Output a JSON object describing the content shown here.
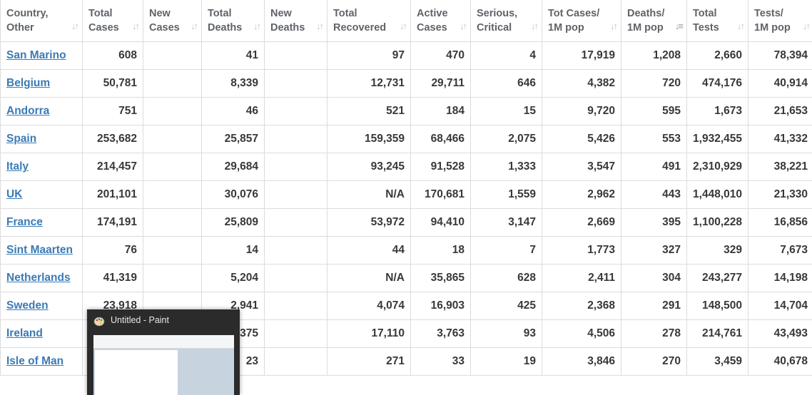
{
  "table": {
    "headers": [
      {
        "label": "Country,\nOther"
      },
      {
        "label": "Total\nCases"
      },
      {
        "label": "New\nCases"
      },
      {
        "label": "Total\nDeaths"
      },
      {
        "label": "New\nDeaths"
      },
      {
        "label": "Total\nRecovered"
      },
      {
        "label": "Active\nCases"
      },
      {
        "label": "Serious,\nCritical"
      },
      {
        "label": "Tot Cases/\n1M pop"
      },
      {
        "label": "Deaths/\n1M pop"
      },
      {
        "label": "Total\nTests"
      },
      {
        "label": "Tests/\n1M pop"
      }
    ],
    "sort_column": "Deaths/\n1M pop",
    "rows": [
      {
        "country": "San Marino",
        "total_cases": "608",
        "new_cases": "",
        "total_deaths": "41",
        "new_deaths": "",
        "total_recovered": "97",
        "active_cases": "470",
        "serious": "4",
        "cases_per_1m": "17,919",
        "deaths_per_1m": "1,208",
        "total_tests": "2,660",
        "tests_per_1m": "78,394"
      },
      {
        "country": "Belgium",
        "total_cases": "50,781",
        "new_cases": "",
        "total_deaths": "8,339",
        "new_deaths": "",
        "total_recovered": "12,731",
        "active_cases": "29,711",
        "serious": "646",
        "cases_per_1m": "4,382",
        "deaths_per_1m": "720",
        "total_tests": "474,176",
        "tests_per_1m": "40,914"
      },
      {
        "country": "Andorra",
        "total_cases": "751",
        "new_cases": "",
        "total_deaths": "46",
        "new_deaths": "",
        "total_recovered": "521",
        "active_cases": "184",
        "serious": "15",
        "cases_per_1m": "9,720",
        "deaths_per_1m": "595",
        "total_tests": "1,673",
        "tests_per_1m": "21,653"
      },
      {
        "country": "Spain",
        "total_cases": "253,682",
        "new_cases": "",
        "total_deaths": "25,857",
        "new_deaths": "",
        "total_recovered": "159,359",
        "active_cases": "68,466",
        "serious": "2,075",
        "cases_per_1m": "5,426",
        "deaths_per_1m": "553",
        "total_tests": "1,932,455",
        "tests_per_1m": "41,332"
      },
      {
        "country": "Italy",
        "total_cases": "214,457",
        "new_cases": "",
        "total_deaths": "29,684",
        "new_deaths": "",
        "total_recovered": "93,245",
        "active_cases": "91,528",
        "serious": "1,333",
        "cases_per_1m": "3,547",
        "deaths_per_1m": "491",
        "total_tests": "2,310,929",
        "tests_per_1m": "38,221"
      },
      {
        "country": "UK",
        "total_cases": "201,101",
        "new_cases": "",
        "total_deaths": "30,076",
        "new_deaths": "",
        "total_recovered": "N/A",
        "active_cases": "170,681",
        "serious": "1,559",
        "cases_per_1m": "2,962",
        "deaths_per_1m": "443",
        "total_tests": "1,448,010",
        "tests_per_1m": "21,330"
      },
      {
        "country": "France",
        "total_cases": "174,191",
        "new_cases": "",
        "total_deaths": "25,809",
        "new_deaths": "",
        "total_recovered": "53,972",
        "active_cases": "94,410",
        "serious": "3,147",
        "cases_per_1m": "2,669",
        "deaths_per_1m": "395",
        "total_tests": "1,100,228",
        "tests_per_1m": "16,856"
      },
      {
        "country": "Sint Maarten",
        "total_cases": "76",
        "new_cases": "",
        "total_deaths": "14",
        "new_deaths": "",
        "total_recovered": "44",
        "active_cases": "18",
        "serious": "7",
        "cases_per_1m": "1,773",
        "deaths_per_1m": "327",
        "total_tests": "329",
        "tests_per_1m": "7,673"
      },
      {
        "country": "Netherlands",
        "total_cases": "41,319",
        "new_cases": "",
        "total_deaths": "5,204",
        "new_deaths": "",
        "total_recovered": "N/A",
        "active_cases": "35,865",
        "serious": "628",
        "cases_per_1m": "2,411",
        "deaths_per_1m": "304",
        "total_tests": "243,277",
        "tests_per_1m": "14,198"
      },
      {
        "country": "Sweden",
        "total_cases": "23,918",
        "new_cases": "",
        "total_deaths": "2,941",
        "new_deaths": "",
        "total_recovered": "4,074",
        "active_cases": "16,903",
        "serious": "425",
        "cases_per_1m": "2,368",
        "deaths_per_1m": "291",
        "total_tests": "148,500",
        "tests_per_1m": "14,704"
      },
      {
        "country": "Ireland",
        "total_cases": "",
        "new_cases": "",
        "total_deaths": "375",
        "new_deaths": "",
        "total_recovered": "17,110",
        "active_cases": "3,763",
        "serious": "93",
        "cases_per_1m": "4,506",
        "deaths_per_1m": "278",
        "total_tests": "214,761",
        "tests_per_1m": "43,493"
      },
      {
        "country": "Isle of Man",
        "total_cases": "",
        "new_cases": "",
        "total_deaths": "23",
        "new_deaths": "",
        "total_recovered": "271",
        "active_cases": "33",
        "serious": "19",
        "cases_per_1m": "3,846",
        "deaths_per_1m": "270",
        "total_tests": "3,459",
        "tests_per_1m": "40,678"
      }
    ]
  },
  "paint_preview": {
    "title": "Untitled - Paint",
    "icon": "paint-palette-icon"
  },
  "colors": {
    "link": "#3a7ab5",
    "text": "#383838",
    "header_text": "#5f6368",
    "border": "#dcdcdc"
  }
}
